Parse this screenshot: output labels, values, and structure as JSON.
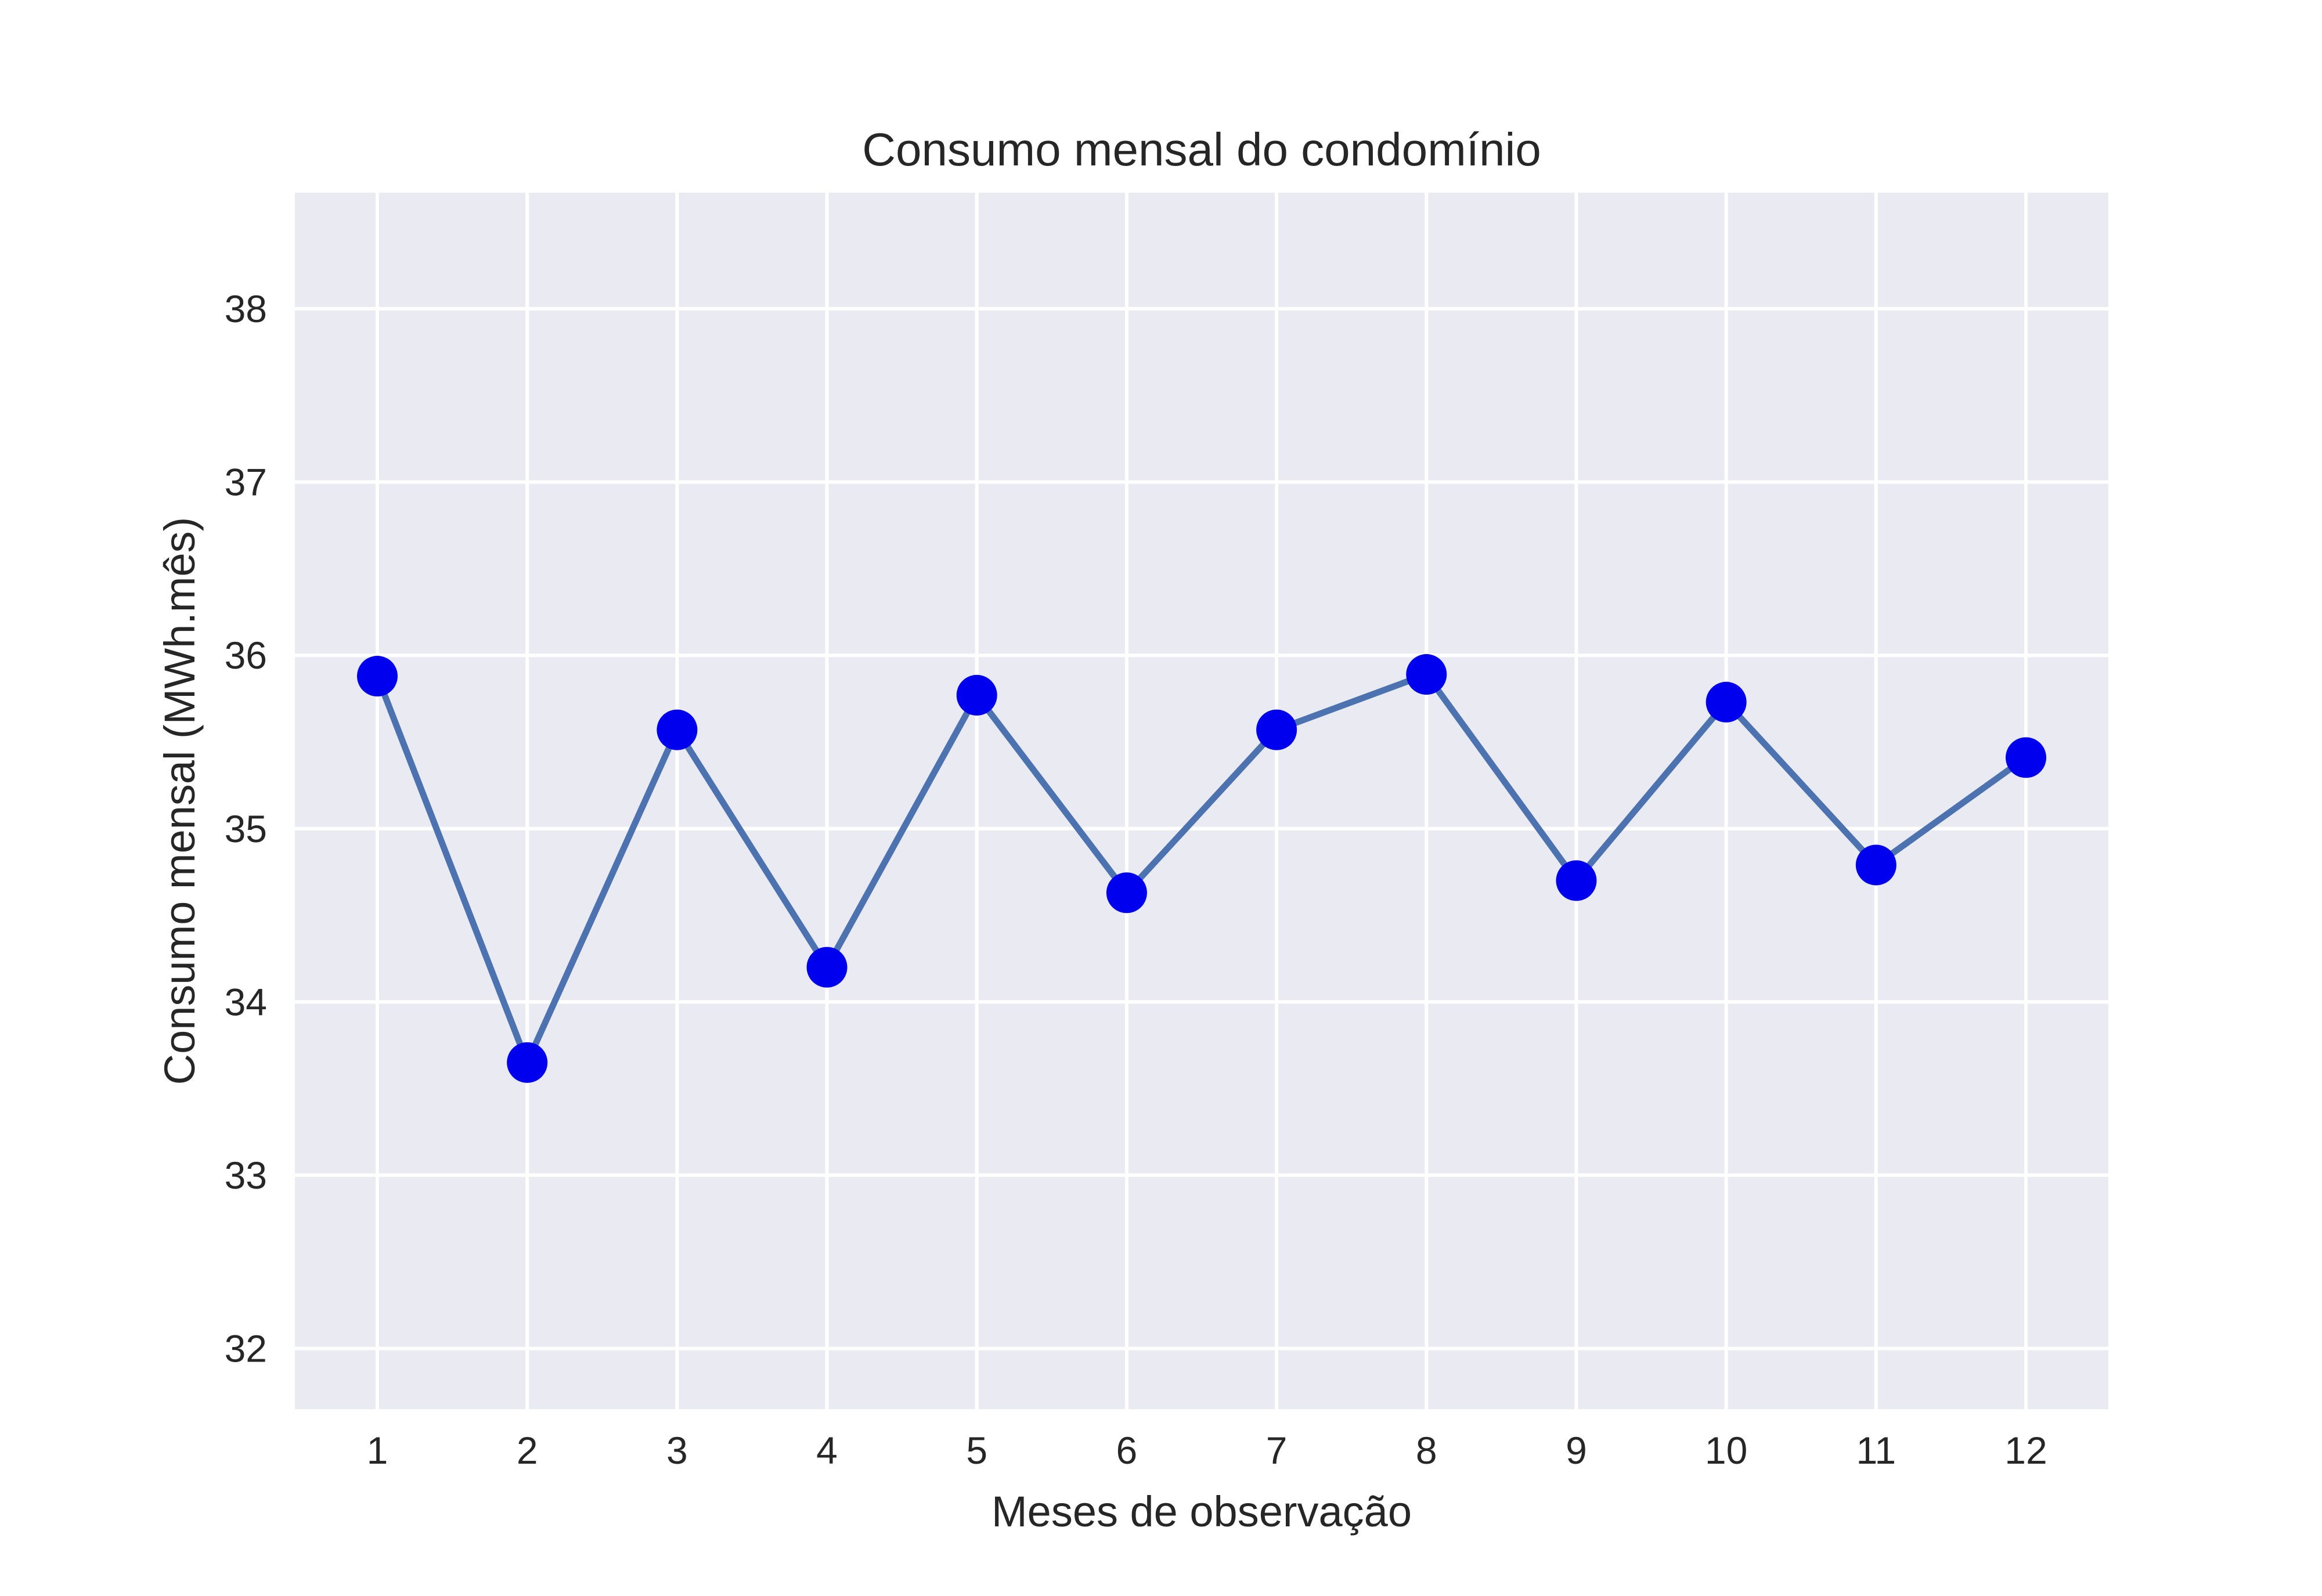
{
  "chart_data": {
    "type": "line",
    "title": "Consumo mensal do condomínio",
    "xlabel": "Meses de observação",
    "ylabel": "Consumo mensal (MWh.mês)",
    "x": [
      1,
      2,
      3,
      4,
      5,
      6,
      7,
      8,
      9,
      10,
      11,
      12
    ],
    "x_tick_labels": [
      "1",
      "2",
      "3",
      "4",
      "5",
      "6",
      "7",
      "8",
      "9",
      "10",
      "11",
      "12"
    ],
    "y_ticks": [
      32,
      33,
      34,
      35,
      36,
      37,
      38
    ],
    "y_tick_labels": [
      "32",
      "33",
      "34",
      "35",
      "36",
      "37",
      "38"
    ],
    "xlim": [
      0.45,
      12.55
    ],
    "ylim": [
      31.65,
      38.67
    ],
    "grid": true,
    "series": [
      {
        "values": [
          35.88,
          33.65,
          35.57,
          34.2,
          35.77,
          34.63,
          35.57,
          35.89,
          34.7,
          35.73,
          34.79,
          35.41
        ],
        "line_color": "#4c72b0",
        "marker_color": "#0000ee"
      }
    ],
    "colors": {
      "plot_background": "#eaeaf2",
      "grid": "#ffffff"
    }
  }
}
